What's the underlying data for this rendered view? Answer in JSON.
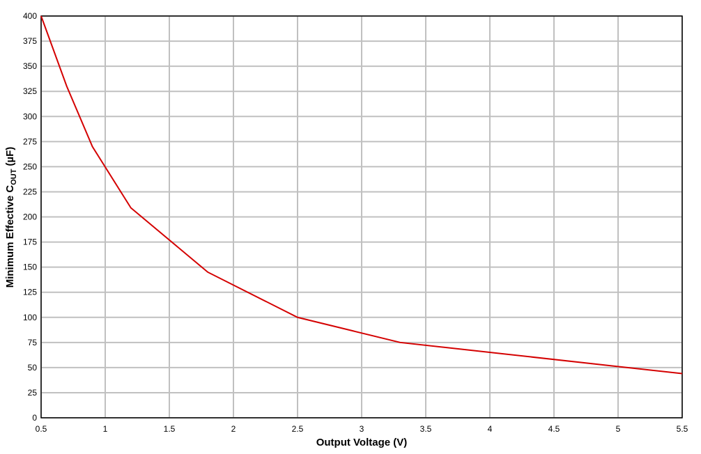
{
  "chart_data": {
    "type": "line",
    "x_label": "Output Voltage (V)",
    "y_label": {
      "main": "Minimum Effective C",
      "sub": "OUT",
      "unit": "(µF)"
    },
    "x": [
      0.5,
      0.7,
      0.9,
      1.2,
      1.8,
      2.5,
      3.3,
      5.5
    ],
    "series": [
      {
        "name": "Minimum Effective COUT",
        "color": "#d40000",
        "values": [
          400,
          330,
          270,
          209,
          145,
          100,
          75,
          44
        ]
      }
    ],
    "xlim": [
      0.5,
      5.5
    ],
    "xticks": [
      0.5,
      1,
      1.5,
      2,
      2.5,
      3,
      3.5,
      4,
      4.5,
      5,
      5.5
    ],
    "ylim": [
      0,
      400
    ],
    "yticks": [
      0,
      25,
      50,
      75,
      100,
      125,
      150,
      175,
      200,
      225,
      250,
      275,
      300,
      325,
      350,
      375,
      400
    ],
    "grid": true
  }
}
